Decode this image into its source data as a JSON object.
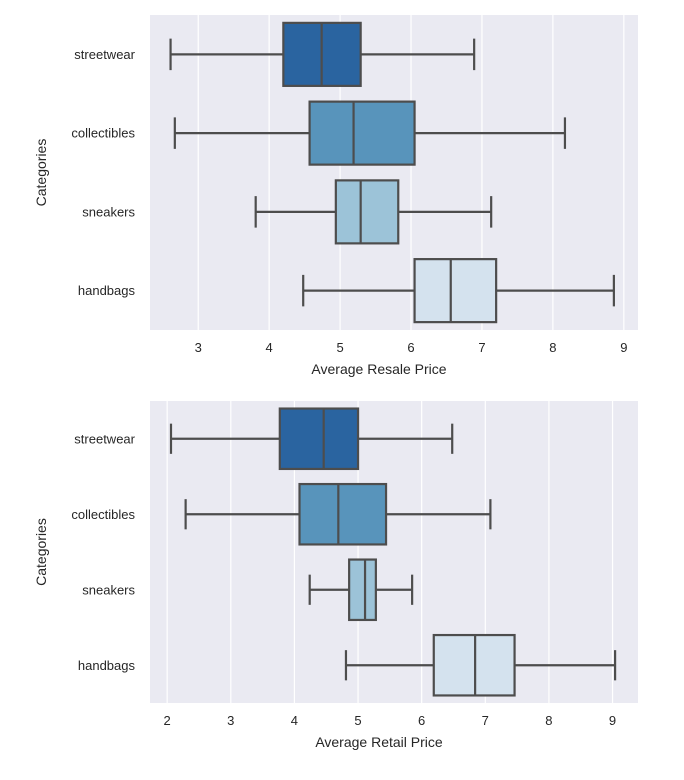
{
  "chart_data": [
    {
      "type": "boxplot",
      "orientation": "horizontal",
      "title": "",
      "xlabel": "Average Resale Price",
      "ylabel": "Categories",
      "xlim": [
        2.32,
        9.2
      ],
      "xticks": [
        3,
        4,
        5,
        6,
        7,
        8,
        9
      ],
      "grid": true,
      "categories": [
        "streetwear",
        "collectibles",
        "sneakers",
        "handbags"
      ],
      "colors": [
        "#2a64a0",
        "#5894bb",
        "#9cc3d8",
        "#d4e2ee"
      ],
      "boxes": [
        {
          "category": "streetwear",
          "whislo": 2.61,
          "q1": 4.2,
          "median": 4.74,
          "q3": 5.29,
          "whishi": 6.89
        },
        {
          "category": "collectibles",
          "whislo": 2.67,
          "q1": 4.57,
          "median": 5.19,
          "q3": 6.05,
          "whishi": 8.17
        },
        {
          "category": "sneakers",
          "whislo": 3.81,
          "q1": 4.94,
          "median": 5.29,
          "q3": 5.82,
          "whishi": 7.13
        },
        {
          "category": "handbags",
          "whislo": 4.48,
          "q1": 6.05,
          "median": 6.56,
          "q3": 7.2,
          "whishi": 8.86
        }
      ]
    },
    {
      "type": "boxplot",
      "orientation": "horizontal",
      "title": "",
      "xlabel": "Average Retail Price",
      "ylabel": "Categories",
      "xlim": [
        1.73,
        9.4
      ],
      "xticks": [
        2,
        3,
        4,
        5,
        6,
        7,
        8,
        9
      ],
      "grid": true,
      "categories": [
        "streetwear",
        "collectibles",
        "sneakers",
        "handbags"
      ],
      "colors": [
        "#2a64a0",
        "#5894bb",
        "#9cc3d8",
        "#d4e2ee"
      ],
      "boxes": [
        {
          "category": "streetwear",
          "whislo": 2.06,
          "q1": 3.77,
          "median": 4.46,
          "q3": 5.0,
          "whishi": 6.48
        },
        {
          "category": "collectibles",
          "whislo": 2.29,
          "q1": 4.08,
          "median": 4.69,
          "q3": 5.44,
          "whishi": 7.08
        },
        {
          "category": "sneakers",
          "whislo": 4.24,
          "q1": 4.86,
          "median": 5.11,
          "q3": 5.28,
          "whishi": 5.85
        },
        {
          "category": "handbags",
          "whislo": 4.81,
          "q1": 6.19,
          "median": 6.84,
          "q3": 7.46,
          "whishi": 9.04
        }
      ]
    }
  ],
  "style": {
    "plot_background": "#eaeaf2",
    "grid_color": "#ffffff",
    "line_color": "#4d4d4d",
    "text_color": "#262626"
  }
}
